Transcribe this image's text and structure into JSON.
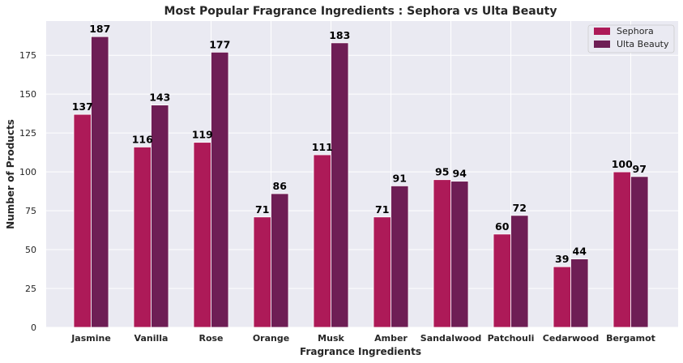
{
  "chart_data": {
    "type": "bar",
    "title": "Most Popular Fragrance Ingredients : Sephora vs Ulta Beauty",
    "xlabel": "Fragrance Ingredients",
    "ylabel": "Number of Products",
    "categories": [
      "Jasmine",
      "Vanilla",
      "Rose",
      "Orange",
      "Musk",
      "Amber",
      "Sandalwood",
      "Patchouli",
      "Cedarwood",
      "Bergamot"
    ],
    "series": [
      {
        "name": "Sephora",
        "color": "#ad1a58",
        "values": [
          137,
          116,
          119,
          71,
          111,
          71,
          95,
          60,
          39,
          100
        ]
      },
      {
        "name": "Ulta Beauty",
        "color": "#6e1e55",
        "values": [
          187,
          143,
          177,
          86,
          183,
          91,
          94,
          72,
          44,
          97
        ]
      }
    ],
    "ylim": [
      0,
      197
    ],
    "yticks": [
      0,
      25,
      50,
      75,
      100,
      125,
      150,
      175
    ],
    "grid": true,
    "legend_position": "top-right",
    "background": "#eaeaf2"
  }
}
